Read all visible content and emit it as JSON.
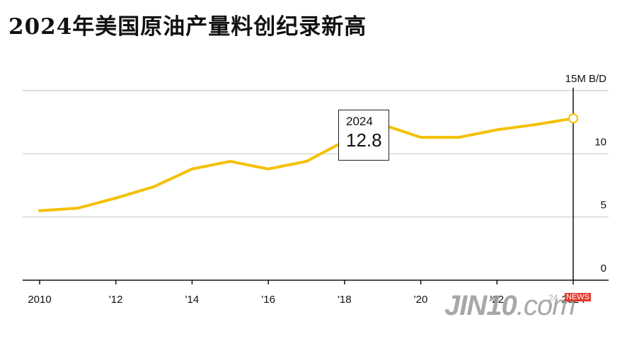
{
  "title": "2024年美国原油产量料创纪录新高",
  "chart_data": {
    "type": "line",
    "title": "2024年美国原油产量料创纪录新高",
    "y_unit_label": "15M B/D",
    "x": [
      2010,
      2011,
      2012,
      2013,
      2014,
      2015,
      2016,
      2017,
      2018,
      2019,
      2020,
      2021,
      2022,
      2023,
      2024
    ],
    "x_tick_values": [
      2010,
      2012,
      2014,
      2016,
      2018,
      2020,
      2022,
      2024
    ],
    "x_tick_labels": [
      "2010",
      "'12",
      "'14",
      "'16",
      "'18",
      "'20",
      "'22",
      "2024"
    ],
    "y_ticks": [
      0,
      5,
      10
    ],
    "y_tick_labels": [
      "0",
      "5",
      "10"
    ],
    "ylim": [
      0,
      15
    ],
    "grid": true,
    "series": [
      {
        "values": [
          5.5,
          5.7,
          6.5,
          7.4,
          8.8,
          9.4,
          8.8,
          9.4,
          11.0,
          12.3,
          11.3,
          11.3,
          11.9,
          12.3,
          12.8
        ],
        "color": "#f5c000"
      }
    ],
    "annotation": {
      "x": 2024,
      "label_year": "2024",
      "label_value": "12.8"
    }
  },
  "watermark": {
    "brand": "JIN10",
    "suffix": ".com",
    "small": "24",
    "badge": "NEWS"
  }
}
